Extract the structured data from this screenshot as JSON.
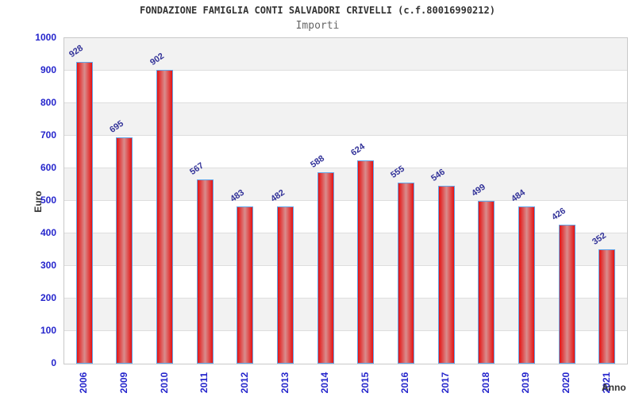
{
  "chart_data": {
    "type": "bar",
    "title": "FONDAZIONE FAMIGLIA CONTI SALVADORI CRIVELLI (c.f.80016990212)",
    "subtitle": "Importi",
    "xlabel": "Anno",
    "ylabel": "Euro",
    "categories": [
      "2006",
      "2009",
      "2010",
      "2011",
      "2012",
      "2013",
      "2014",
      "2015",
      "2016",
      "2017",
      "2018",
      "2019",
      "2020",
      "2021"
    ],
    "values": [
      928,
      695,
      902,
      567,
      483,
      482,
      588,
      624,
      555,
      546,
      499,
      484,
      426,
      352
    ],
    "ylim": [
      0,
      1000
    ],
    "ytick_interval": 100,
    "yticks": [
      0,
      100,
      200,
      300,
      400,
      500,
      600,
      700,
      800,
      900,
      1000
    ],
    "grid": "horizontal alternating bands",
    "legend": "none",
    "bar_label_rotation_deg": -35,
    "x_label_rotation_deg": -90
  },
  "colors": {
    "title": "#333333",
    "subtitle": "#666666",
    "axis_title": "#333333",
    "tick_label": "#2525cc",
    "value_label": "#333399",
    "bar_edge": "#e51212",
    "bar_center": "#d98d8d",
    "bar_border": "#63a4e6",
    "band_dark": "#f2f2f2",
    "band_light": "#ffffff",
    "grid_line": "#dedede",
    "plot_border": "#c9c9c9",
    "background": "#ffffff"
  }
}
